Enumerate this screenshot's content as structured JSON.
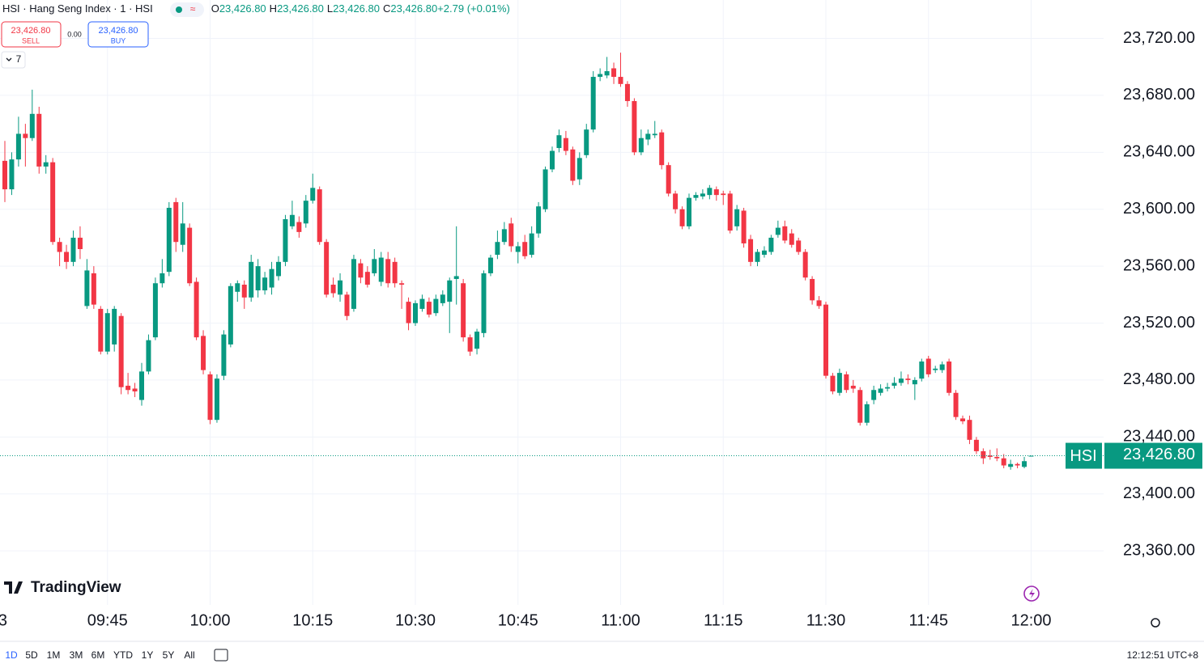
{
  "chart_data": {
    "type": "candlestick",
    "title": "HSI · Hang Seng Index · 1 · HSI",
    "ohlc_legend": [
      {
        "key": "O",
        "value": "23,426.80"
      },
      {
        "key": "H",
        "value": "23,426.80"
      },
      {
        "key": "L",
        "value": "23,426.80"
      },
      {
        "key": "C",
        "value": "23,426.80"
      },
      {
        "key": "",
        "value": "+2.79 (+0.01%)"
      }
    ],
    "up_color": "#089981",
    "down_color": "#f23645",
    "grid": true,
    "ylim": [
      23322,
      23747
    ],
    "yticks": [
      {
        "value": 23360,
        "label": "23,360.00"
      },
      {
        "value": 23400,
        "label": "23,400.00"
      },
      {
        "value": 23440,
        "label": "23,440.00"
      },
      {
        "value": 23480,
        "label": "23,480.00"
      },
      {
        "value": 23520,
        "label": "23,520.00"
      },
      {
        "value": 23560,
        "label": "23,560.00"
      },
      {
        "value": 23600,
        "label": "23,600.00"
      },
      {
        "value": 23640,
        "label": "23,640.00"
      },
      {
        "value": 23680,
        "label": "23,680.00"
      },
      {
        "value": 23720,
        "label": "23,720.00"
      }
    ],
    "last": {
      "name": "HSI",
      "value": 23426.8,
      "label": "23,426.80"
    },
    "categories": [
      "3",
      null,
      null,
      null,
      null,
      null,
      null,
      null,
      null,
      null,
      null,
      null,
      null,
      null,
      null,
      "09:45",
      null,
      null,
      null,
      null,
      null,
      null,
      null,
      null,
      null,
      null,
      null,
      null,
      null,
      null,
      "10:00",
      null,
      null,
      null,
      null,
      null,
      null,
      null,
      null,
      null,
      null,
      null,
      null,
      null,
      null,
      "10:15",
      null,
      null,
      null,
      null,
      null,
      null,
      null,
      null,
      null,
      null,
      null,
      null,
      null,
      null,
      "10:30",
      null,
      null,
      null,
      null,
      null,
      null,
      null,
      null,
      null,
      null,
      null,
      null,
      null,
      null,
      "10:45",
      null,
      null,
      null,
      null,
      null,
      null,
      null,
      null,
      null,
      null,
      null,
      null,
      null,
      null,
      "11:00",
      null,
      null,
      null,
      null,
      null,
      null,
      null,
      null,
      null,
      null,
      null,
      null,
      null,
      null,
      "11:15",
      null,
      null,
      null,
      null,
      null,
      null,
      null,
      null,
      null,
      null,
      null,
      null,
      null,
      null,
      "11:30",
      null,
      null,
      null,
      null,
      null,
      null,
      null,
      null,
      null,
      null,
      null,
      null,
      null,
      null,
      "11:45",
      null,
      null,
      null,
      null,
      null,
      null,
      null,
      null,
      null,
      null,
      null,
      null,
      null,
      null,
      "12:00"
    ],
    "open": [
      23634,
      23614,
      23635,
      23653,
      23650,
      23667,
      23630,
      23633,
      23577,
      23570,
      23563,
      23580,
      23532,
      23555,
      23530,
      23500,
      23505,
      23525,
      23476,
      23474,
      23466,
      23486,
      23510,
      23548,
      23556,
      23605,
      23575,
      23587,
      23549,
      23511,
      23484,
      23452,
      23483,
      23505,
      23542,
      23547,
      23538,
      23543,
      23543,
      23545,
      23553,
      23563,
      23588,
      23591,
      23590,
      23606,
      23614,
      23577,
      23547,
      23540,
      23540,
      23530,
      23562,
      23556,
      23555,
      23549,
      23565,
      23563,
      23548,
      23535,
      23520,
      23530,
      23535,
      23527,
      23534,
      23535,
      23551,
      23548,
      23510,
      23502,
      23513,
      23555,
      23568,
      23577,
      23590,
      23570,
      23577,
      23568,
      23583,
      23600,
      23628,
      23643,
      23650,
      23642,
      23621,
      23638,
      23656,
      23693,
      23694,
      23699,
      23693,
      23688,
      23676,
      23640,
      23649,
      23652,
      23654,
      23631,
      23611,
      23600,
      23588,
      23608,
      23609,
      23610,
      23614,
      23611,
      23611,
      23588,
      23599,
      23579,
      23563,
      23568,
      23570,
      23582,
      23588,
      23583,
      23578,
      23570,
      23551,
      23536,
      23533,
      23483,
      23471,
      23484,
      23476,
      23473,
      23450,
      23466,
      23471,
      23474,
      23476,
      23478,
      23481,
      23477,
      23481,
      23495,
      23487,
      23487,
      23493,
      23471,
      23453,
      23452,
      23438,
      23430,
      23427,
      23426,
      23425,
      23419,
      23421,
      23419,
      23426.8
    ],
    "high": [
      23648,
      23640,
      23665,
      23660,
      23684,
      23672,
      23638,
      23636,
      23580,
      23575,
      23585,
      23588,
      23565,
      23560,
      23532,
      23530,
      23532,
      23527,
      23485,
      23478,
      23492,
      23512,
      23552,
      23565,
      23605,
      23608,
      23605,
      23590,
      23552,
      23515,
      23486,
      23484,
      23515,
      23548,
      23550,
      23550,
      23568,
      23565,
      23556,
      23563,
      23567,
      23596,
      23606,
      23595,
      23610,
      23625,
      23616,
      23579,
      23552,
      23555,
      23542,
      23568,
      23565,
      23560,
      23572,
      23570,
      23570,
      23566,
      23550,
      23538,
      23536,
      23540,
      23538,
      23540,
      23543,
      23552,
      23588,
      23551,
      23512,
      23516,
      23557,
      23568,
      23585,
      23591,
      23594,
      23577,
      23582,
      23588,
      23605,
      23630,
      23644,
      23656,
      23655,
      23644,
      23640,
      23660,
      23697,
      23699,
      23707,
      23703,
      23710,
      23690,
      23678,
      23656,
      23656,
      23662,
      23656,
      23633,
      23613,
      23602,
      23611,
      23612,
      23614,
      23617,
      23616,
      23613,
      23613,
      23603,
      23601,
      23582,
      23572,
      23574,
      23582,
      23592,
      23592,
      23586,
      23580,
      23572,
      23553,
      23539,
      23535,
      23485,
      23488,
      23486,
      23480,
      23475,
      23465,
      23476,
      23477,
      23478,
      23482,
      23486,
      23484,
      23482,
      23495,
      23497,
      23490,
      23493,
      23495,
      23473,
      23455,
      23455,
      23440,
      23432,
      23431,
      23432,
      23428,
      23424,
      23422,
      23426,
      23427
    ],
    "low": [
      23605,
      23610,
      23630,
      23630,
      23648,
      23625,
      23625,
      23575,
      23560,
      23558,
      23560,
      23565,
      23530,
      23530,
      23498,
      23498,
      23500,
      23470,
      23470,
      23468,
      23462,
      23484,
      23508,
      23545,
      23553,
      23570,
      23570,
      23546,
      23508,
      23484,
      23449,
      23450,
      23480,
      23503,
      23535,
      23530,
      23535,
      23538,
      23540,
      23540,
      23550,
      23560,
      23586,
      23580,
      23587,
      23604,
      23575,
      23538,
      23538,
      23535,
      23522,
      23528,
      23548,
      23545,
      23553,
      23546,
      23545,
      23545,
      23530,
      23515,
      23518,
      23528,
      23524,
      23525,
      23532,
      23513,
      23533,
      23507,
      23497,
      23498,
      23510,
      23553,
      23565,
      23575,
      23570,
      23562,
      23565,
      23566,
      23580,
      23598,
      23626,
      23640,
      23638,
      23617,
      23617,
      23636,
      23654,
      23690,
      23692,
      23688,
      23686,
      23672,
      23638,
      23638,
      23645,
      23650,
      23628,
      23609,
      23597,
      23586,
      23586,
      23606,
      23607,
      23607,
      23606,
      23603,
      23583,
      23585,
      23573,
      23560,
      23560,
      23566,
      23568,
      23580,
      23576,
      23573,
      23568,
      23550,
      23533,
      23530,
      23481,
      23470,
      23469,
      23471,
      23471,
      23448,
      23448,
      23463,
      23469,
      23472,
      23474,
      23476,
      23477,
      23466,
      23479,
      23482,
      23485,
      23485,
      23469,
      23452,
      23449,
      23435,
      23428,
      23421,
      23424,
      23423,
      23418,
      23417,
      23418,
      23418,
      23426.8
    ],
    "close": [
      23614,
      23635,
      23653,
      23650,
      23667,
      23630,
      23633,
      23577,
      23570,
      23563,
      23580,
      23572,
      23557,
      23533,
      23500,
      23527,
      23530,
      23475,
      23473,
      23472,
      23486,
      23508,
      23548,
      23555,
      23601,
      23577,
      23590,
      23548,
      23510,
      23487,
      23452,
      23481,
      23512,
      23546,
      23548,
      23538,
      23563,
      23560,
      23552,
      23558,
      23563,
      23593,
      23596,
      23584,
      23606,
      23615,
      23577,
      23540,
      23541,
      23550,
      23525,
      23565,
      23552,
      23547,
      23565,
      23566,
      23548,
      23548,
      23547,
      23520,
      23534,
      23537,
      23526,
      23537,
      23540,
      23550,
      23553,
      23510,
      23500,
      23514,
      23555,
      23566,
      23577,
      23586,
      23574,
      23574,
      23567,
      23583,
      23602,
      23628,
      23641,
      23652,
      23641,
      23620,
      23636,
      23656,
      23693,
      23695,
      23697,
      23693,
      23688,
      23676,
      23640,
      23650,
      23653,
      23653,
      23631,
      23611,
      23600,
      23588,
      23608,
      23610,
      23611,
      23615,
      23610,
      23610,
      23585,
      23600,
      23576,
      23563,
      23570,
      23571,
      23580,
      23587,
      23578,
      23575,
      23570,
      23552,
      23536,
      23532,
      23483,
      23472,
      23485,
      23473,
      23474,
      23450,
      23463,
      23473,
      23474,
      23475,
      23478,
      23481,
      23480,
      23480,
      23493,
      23484,
      23488,
      23491,
      23471,
      23454,
      23451,
      23438,
      23430,
      23425,
      23426,
      23425,
      23420,
      23421,
      23420,
      23423,
      23426.8
    ]
  },
  "trade": {
    "sell_price": "23,426.80",
    "sell_label": "SELL",
    "spread": "0.00",
    "buy_price": "23,426.80",
    "buy_label": "BUY"
  },
  "indicators_count": "7",
  "logo": "TradingView",
  "toolbar": {
    "ranges": [
      "1D",
      "5D",
      "1M",
      "3M",
      "6M",
      "YTD",
      "1Y",
      "5Y",
      "All"
    ],
    "clock": "12:12:51 UTC+8"
  }
}
